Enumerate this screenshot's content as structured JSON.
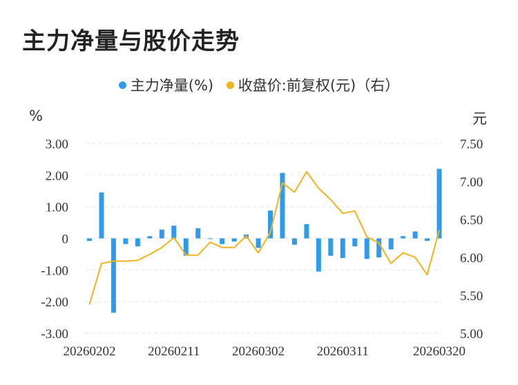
{
  "title": "主力净量与股价走势",
  "legend": [
    {
      "label": "主力净量(%)",
      "color": "#2f9bea"
    },
    {
      "label": "收盘价:前复权(元)（右）",
      "color": "#f2b21d"
    }
  ],
  "left_unit": "%",
  "right_unit": "元",
  "chart_data": {
    "type": "bar",
    "title": "主力净量与股价走势",
    "x_tick_labels": [
      "20260202",
      "20260211",
      "20260302",
      "20260311",
      "20260320"
    ],
    "y_left": {
      "label": "%",
      "range": [
        -3,
        3
      ],
      "ticks": [
        "3.00",
        "2.00",
        "1.00",
        "0",
        "-1.00",
        "-2.00",
        "-3.00"
      ]
    },
    "y_right": {
      "label": "元",
      "range": [
        5,
        7.5
      ],
      "ticks": [
        "7.50",
        "7.00",
        "6.50",
        "6.00",
        "5.50",
        "5.00"
      ]
    },
    "grid": true,
    "legend_position": "top",
    "series": [
      {
        "name": "主力净量(%)",
        "type": "bar",
        "axis": "left",
        "color": "#2f9bea",
        "values": [
          -0.08,
          1.45,
          -2.35,
          -0.18,
          -0.25,
          0.07,
          0.28,
          0.4,
          -0.55,
          0.32,
          0.0,
          -0.18,
          -0.1,
          0.12,
          -0.3,
          0.88,
          2.07,
          -0.2,
          0.45,
          -1.05,
          -0.55,
          -0.62,
          -0.25,
          -0.65,
          -0.6,
          -0.35,
          0.07,
          0.22,
          -0.08,
          2.2
        ]
      },
      {
        "name": "收盘价:前复权(元)（右）",
        "type": "line",
        "axis": "right",
        "color": "#f2b21d",
        "values": [
          5.38,
          5.92,
          5.95,
          5.95,
          5.96,
          6.04,
          6.13,
          6.26,
          6.03,
          6.03,
          6.2,
          6.13,
          6.13,
          6.28,
          6.06,
          6.33,
          6.98,
          6.86,
          7.13,
          6.91,
          6.76,
          6.58,
          6.61,
          6.27,
          6.19,
          5.92,
          6.06,
          6.0,
          5.77,
          6.36
        ]
      }
    ]
  }
}
